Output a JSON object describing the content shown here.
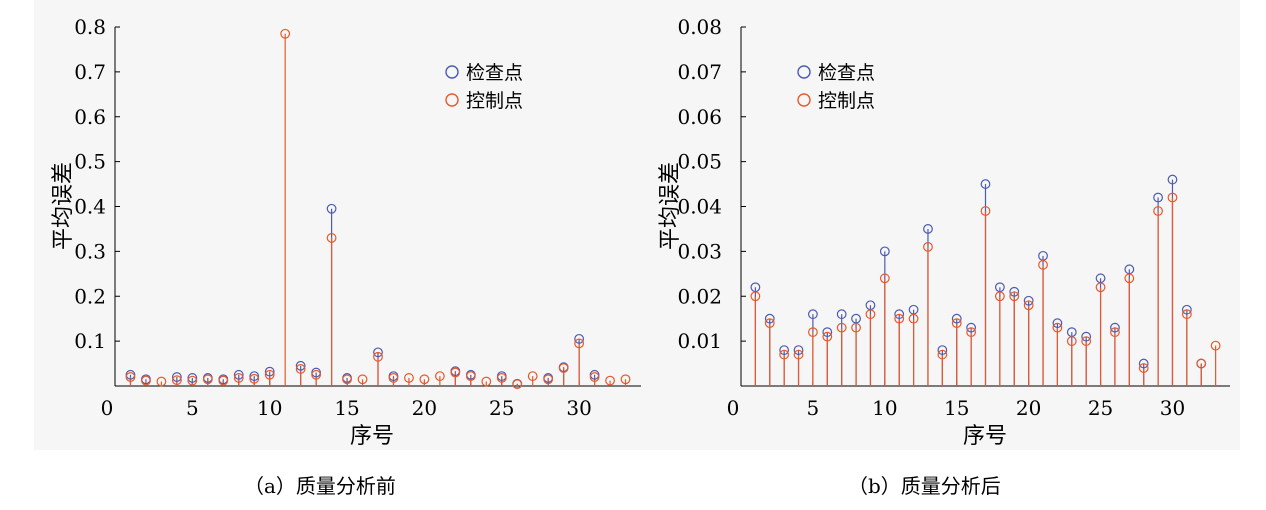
{
  "captions": [
    "（a）质量分析前",
    "（b）质量分析后"
  ],
  "colors": {
    "check": "#4b5bb0",
    "control": "#e8582a"
  },
  "chart_data": [
    {
      "type": "scatter",
      "subtype": "stem",
      "xlabel": "序号",
      "ylabel": "平均误差",
      "xlim": [
        0,
        34
      ],
      "ylim": [
        0,
        0.8
      ],
      "xticks": [
        0,
        5,
        10,
        15,
        20,
        25,
        30
      ],
      "yticks": [
        0.1,
        0.2,
        0.3,
        0.4,
        0.5,
        0.6,
        0.7,
        0.8
      ],
      "ytick_labels": [
        "0.1",
        "0.2",
        "0.3",
        "0.4",
        "0.5",
        "0.6",
        "0.7",
        "0.8"
      ],
      "legend": {
        "position": "top-right",
        "entries": [
          "检查点",
          "控制点"
        ]
      },
      "x": [
        1,
        2,
        3,
        4,
        5,
        6,
        7,
        8,
        9,
        10,
        11,
        12,
        13,
        14,
        15,
        16,
        17,
        18,
        19,
        20,
        21,
        22,
        23,
        24,
        25,
        26,
        27,
        28,
        29,
        30,
        31,
        32,
        33
      ],
      "series": [
        {
          "name": "检查点",
          "values": [
            0.025,
            0.015,
            null,
            0.02,
            0.018,
            0.018,
            0.015,
            0.025,
            0.022,
            0.032,
            null,
            0.045,
            0.03,
            0.395,
            0.018,
            null,
            0.075,
            0.022,
            null,
            null,
            null,
            0.033,
            0.025,
            null,
            0.022,
            0.005,
            null,
            0.018,
            0.042,
            0.105,
            0.025,
            null,
            null
          ]
        },
        {
          "name": "控制点",
          "values": [
            0.02,
            0.012,
            0.01,
            0.013,
            0.012,
            0.015,
            0.012,
            0.018,
            0.016,
            0.025,
            0.785,
            0.038,
            0.025,
            0.33,
            0.015,
            0.015,
            0.065,
            0.018,
            0.018,
            0.015,
            0.022,
            0.03,
            0.022,
            0.01,
            0.018,
            0.004,
            0.022,
            0.015,
            0.04,
            0.095,
            0.02,
            0.012,
            0.015
          ]
        }
      ]
    },
    {
      "type": "scatter",
      "subtype": "stem",
      "xlabel": "序号",
      "ylabel": "平均误差",
      "xlim": [
        0,
        34
      ],
      "ylim": [
        0,
        0.08
      ],
      "xticks": [
        0,
        5,
        10,
        15,
        20,
        25,
        30
      ],
      "yticks": [
        0.01,
        0.02,
        0.03,
        0.04,
        0.05,
        0.06,
        0.07,
        0.08
      ],
      "ytick_labels": [
        "0.01",
        "0.02",
        "0.03",
        "0.04",
        "0.05",
        "0.06",
        "0.07",
        "0.08"
      ],
      "legend": {
        "position": "top-right",
        "entries": [
          "检查点",
          "控制点"
        ]
      },
      "x": [
        1,
        2,
        3,
        4,
        5,
        6,
        7,
        8,
        9,
        10,
        11,
        12,
        13,
        14,
        15,
        16,
        17,
        18,
        19,
        20,
        21,
        22,
        23,
        24,
        25,
        26,
        27,
        28,
        29,
        30,
        31,
        32,
        33
      ],
      "series": [
        {
          "name": "检查点",
          "values": [
            0.022,
            0.015,
            0.008,
            0.008,
            0.016,
            0.012,
            0.016,
            0.015,
            0.018,
            0.03,
            0.016,
            0.017,
            0.035,
            0.008,
            0.015,
            0.013,
            0.045,
            0.022,
            0.021,
            0.019,
            0.029,
            0.014,
            0.012,
            0.011,
            0.024,
            0.013,
            0.026,
            0.005,
            0.042,
            0.046,
            0.017,
            0.005,
            null
          ]
        },
        {
          "name": "控制点",
          "values": [
            0.02,
            0.014,
            0.007,
            0.007,
            0.012,
            0.011,
            0.013,
            0.013,
            0.016,
            0.024,
            0.015,
            0.015,
            0.031,
            0.007,
            0.014,
            0.012,
            0.039,
            0.02,
            0.02,
            0.018,
            0.027,
            0.013,
            0.01,
            0.01,
            0.022,
            0.012,
            0.024,
            0.004,
            0.039,
            0.042,
            0.016,
            0.005,
            0.009
          ]
        }
      ]
    }
  ]
}
